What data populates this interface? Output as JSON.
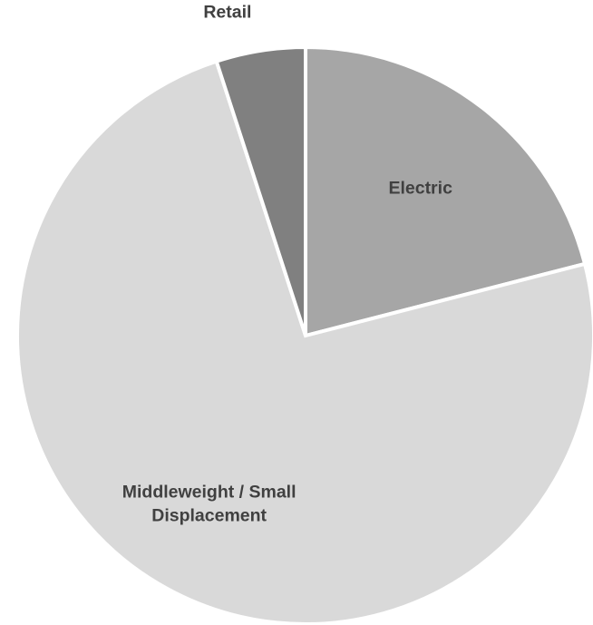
{
  "chart_data": {
    "type": "pie",
    "title": "",
    "start_angle_deg": 0,
    "direction": "clockwise",
    "slices": [
      {
        "label": "Electric",
        "label_lines": [
          "Electric"
        ],
        "value": 21,
        "color": "#a6a6a6",
        "label_position": "inside"
      },
      {
        "label": "Middleweight / Small Displacement",
        "label_lines": [
          "Middleweight / Small",
          "Displacement"
        ],
        "value": 74,
        "color": "#d9d9d9",
        "label_position": "inside"
      },
      {
        "label": "Retail",
        "label_lines": [
          "Retail"
        ],
        "value": 5,
        "color": "#808080",
        "label_position": "outside"
      }
    ],
    "legend": "none"
  }
}
